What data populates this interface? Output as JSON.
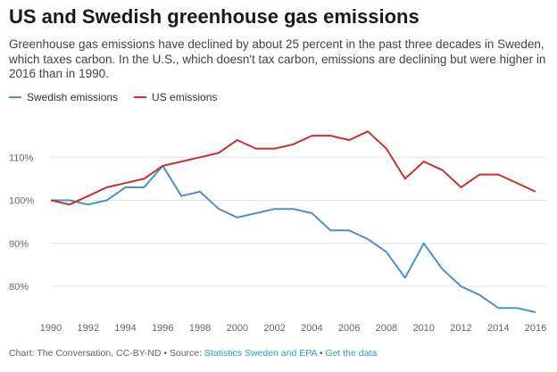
{
  "title": "US and Swedish greenhouse gas emissions",
  "subtitle": "Greenhouse gas emissions have declined by about 25 percent in the past three decades in Sweden, which taxes carbon. In the U.S., which doesn't tax carbon, emissions are declining but were higher in 2016 than in 1990.",
  "legend": {
    "swedish": "Swedish emissions",
    "us": "US emissions"
  },
  "footer": {
    "credit": "Chart: The Conversation, CC-BY-ND • Source: ",
    "source_link": "Statistics Sweden and EPA",
    "separator": " • ",
    "data_link": "Get the data"
  },
  "colors": {
    "swedish": "#4a90d0",
    "us": "#c8322d",
    "grid": "#e3e3e3"
  },
  "chart_data": {
    "type": "line",
    "x": [
      1990,
      1991,
      1992,
      1993,
      1994,
      1995,
      1996,
      1997,
      1998,
      1999,
      2000,
      2001,
      2002,
      2003,
      2004,
      2005,
      2006,
      2007,
      2008,
      2009,
      2010,
      2011,
      2012,
      2013,
      2014,
      2015,
      2016
    ],
    "series": [
      {
        "name": "Swedish emissions",
        "values": [
          100,
          100,
          99,
          100,
          103,
          103,
          108,
          101,
          102,
          98,
          96,
          97,
          98,
          98,
          97,
          93,
          93,
          91,
          88,
          82,
          90,
          84,
          80,
          78,
          75,
          75,
          74
        ]
      },
      {
        "name": "US emissions",
        "values": [
          100,
          99,
          101,
          103,
          104,
          105,
          108,
          109,
          110,
          111,
          114,
          112,
          112,
          113,
          115,
          115,
          114,
          116,
          112,
          105,
          109,
          107,
          103,
          106,
          106,
          104,
          102
        ]
      }
    ],
    "xticks": [
      1990,
      1992,
      1994,
      1996,
      1998,
      2000,
      2002,
      2004,
      2006,
      2008,
      2010,
      2012,
      2014,
      2016
    ],
    "yticks": [
      80,
      90,
      100,
      110
    ],
    "ytick_labels": [
      "80%",
      "90%",
      "100%",
      "110%"
    ],
    "xlim": [
      1990,
      2016
    ],
    "ylim": [
      74,
      120
    ],
    "grid": "horizontal",
    "legend_placement": "top-left",
    "xlabel": "",
    "ylabel": ""
  }
}
